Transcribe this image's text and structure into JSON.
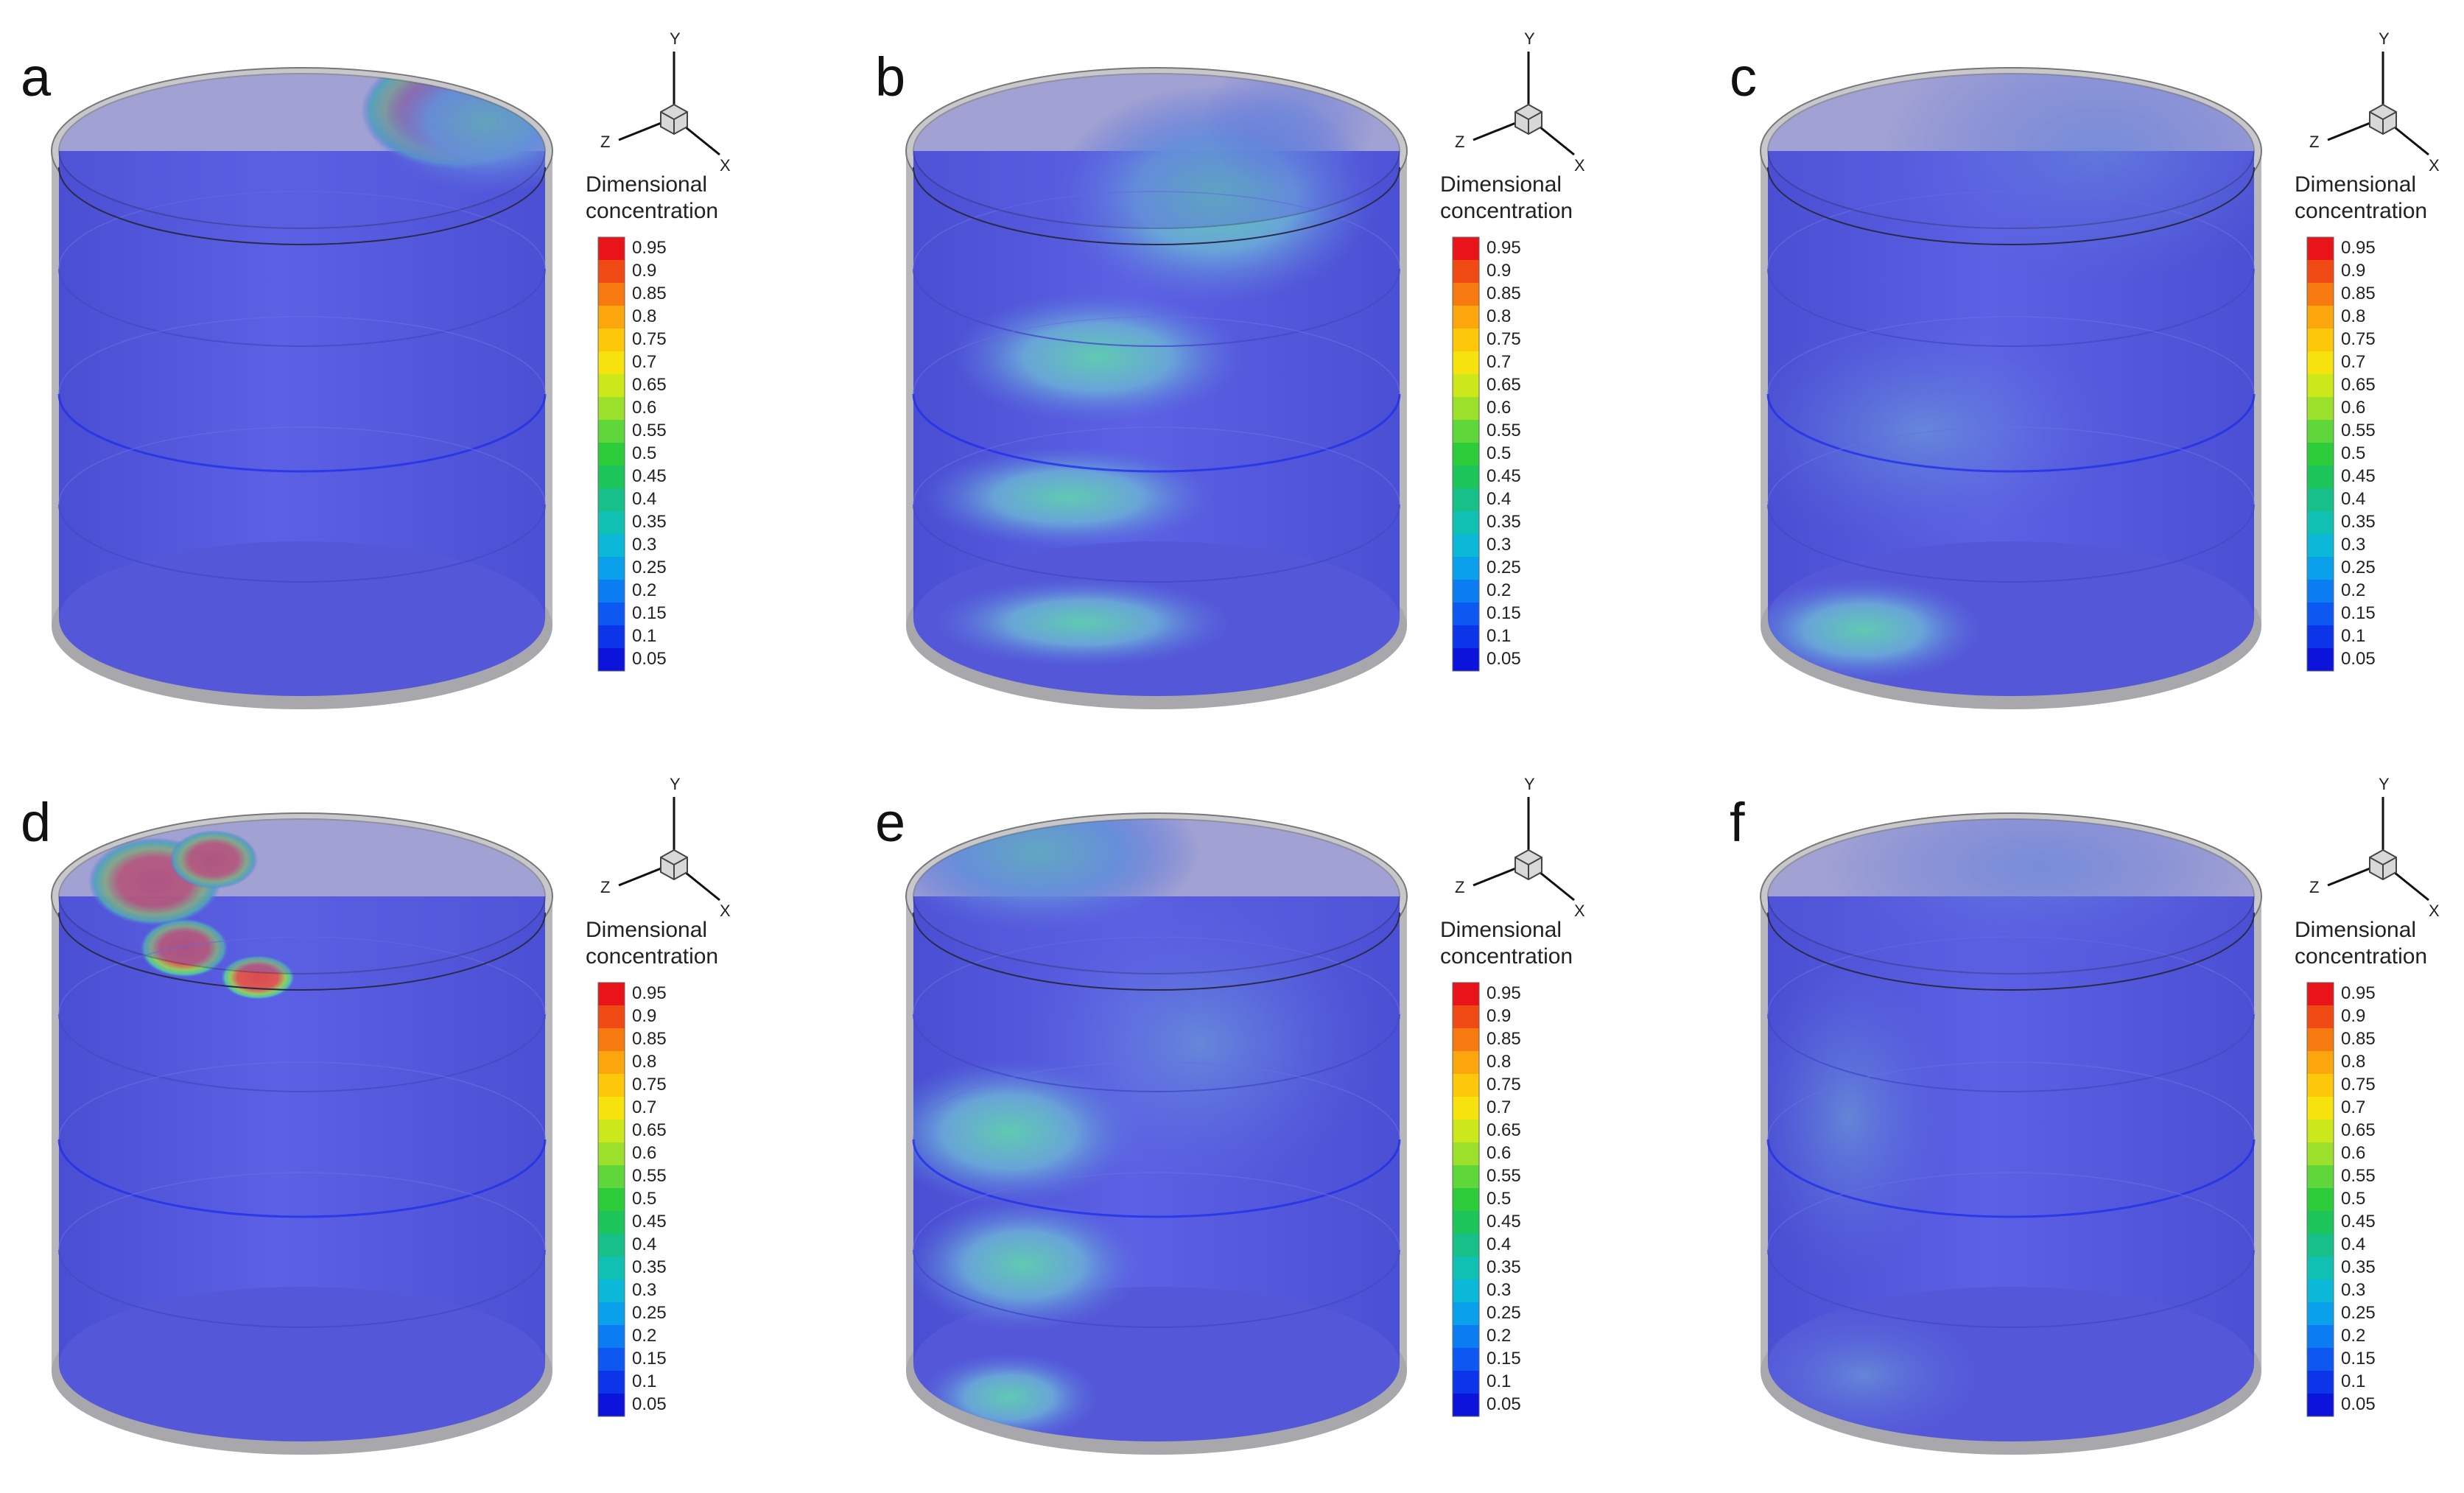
{
  "panels": [
    {
      "letter": "a",
      "legend_title_line1": "Dimensional",
      "legend_title_line2": "concentration",
      "axes": [
        "Y",
        "Z",
        "X"
      ]
    },
    {
      "letter": "b",
      "legend_title_line1": "Dimensional",
      "legend_title_line2": "concentration",
      "axes": [
        "Y",
        "Z",
        "X"
      ]
    },
    {
      "letter": "c",
      "legend_title_line1": "Dimensional",
      "legend_title_line2": "concentration",
      "axes": [
        "Y",
        "Z",
        "X"
      ]
    },
    {
      "letter": "d",
      "legend_title_line1": "Dimensional",
      "legend_title_line2": "concentration",
      "axes": [
        "Y",
        "Z",
        "X"
      ]
    },
    {
      "letter": "e",
      "legend_title_line1": "Dimensional",
      "legend_title_line2": "concentration",
      "axes": [
        "Y",
        "Z",
        "X"
      ]
    },
    {
      "letter": "f",
      "legend_title_line1": "Dimensional",
      "legend_title_line2": "concentration",
      "axes": [
        "Y",
        "Z",
        "X"
      ]
    }
  ],
  "legend": {
    "ticks": [
      "0.95",
      "0.9",
      "0.85",
      "0.8",
      "0.75",
      "0.7",
      "0.65",
      "0.6",
      "0.55",
      "0.5",
      "0.45",
      "0.4",
      "0.35",
      "0.3",
      "0.25",
      "0.2",
      "0.15",
      "0.1",
      "0.05"
    ],
    "colors": [
      "#e8141a",
      "#f04a14",
      "#f77a10",
      "#fba60c",
      "#fdc80a",
      "#f6e20c",
      "#cde81a",
      "#9be02a",
      "#5fd63a",
      "#2ccc3a",
      "#1cc45a",
      "#16c088",
      "#10c0b2",
      "#0cb8d8",
      "#0aa0ec",
      "#0b7cf2",
      "#0c58f0",
      "#0c34e8",
      "#0c14dc"
    ]
  },
  "colors": {
    "vessel_base": "#5458dc",
    "vessel_wall": "#b8b8bc",
    "hot": "#e0524a",
    "mid": "#58c8a8",
    "low": "#6a9cd8"
  }
}
